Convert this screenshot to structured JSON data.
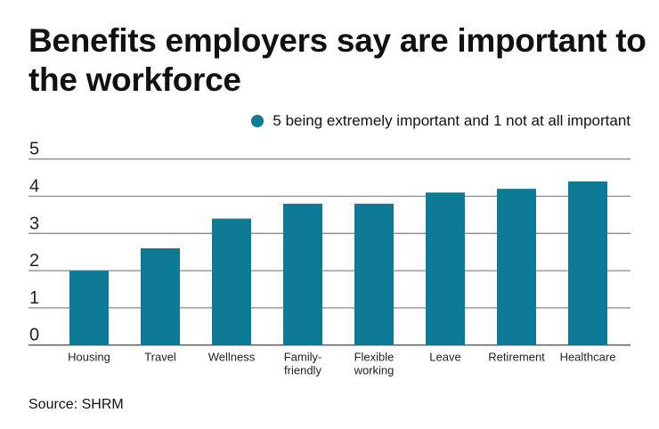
{
  "chart_data": {
    "type": "bar",
    "title": "Benefits employers say are important to the workforce",
    "legend": {
      "label": "5 being extremely important and 1 not at all important",
      "placement": "top-right"
    },
    "categories": [
      "Housing",
      "Travel",
      "Wellness",
      "Family-\nfriendly",
      "Flexible\nworking",
      "Leave",
      "Retirement",
      "Healthcare"
    ],
    "values": [
      2.0,
      2.6,
      3.4,
      3.8,
      3.8,
      4.1,
      4.2,
      4.4
    ],
    "ylim": [
      0,
      5
    ],
    "yticks": [
      "0",
      "1",
      "2",
      "3",
      "4",
      "5"
    ],
    "grid": true,
    "xlabel": "",
    "ylabel": "",
    "colors": {
      "bar": "#0d7a96",
      "grid": "#8a8a8a"
    }
  },
  "source": "Source: SHRM"
}
